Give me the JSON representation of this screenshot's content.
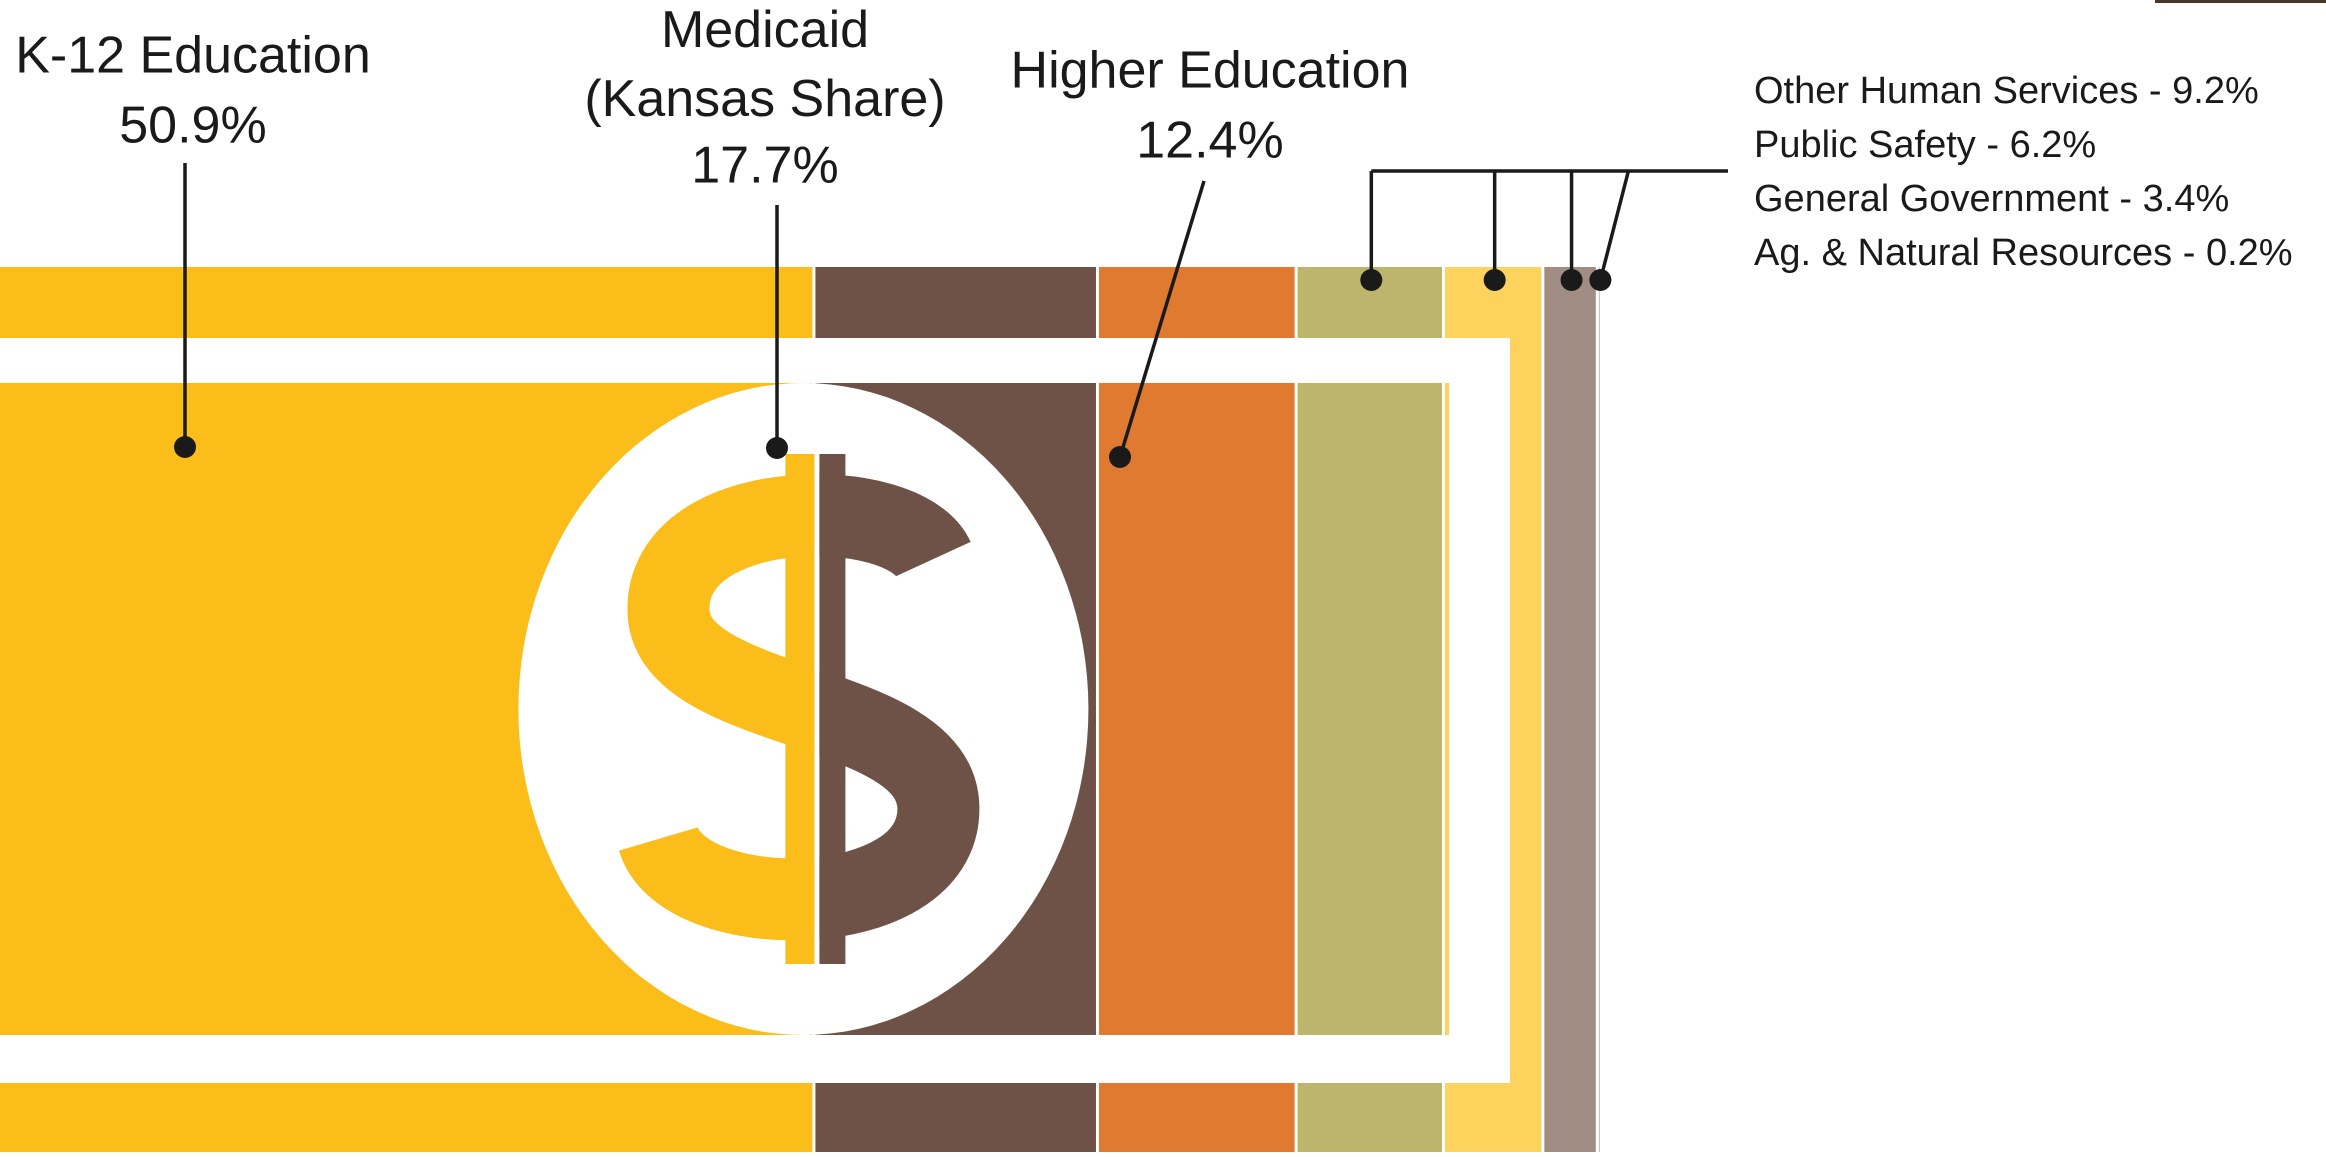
{
  "chart_data": {
    "type": "bar",
    "orientation": "horizontal",
    "stacked": true,
    "categories": [
      "K-12 Education",
      "Medicaid (Kansas Share)",
      "Higher Education",
      "Other Human Services",
      "Public Safety",
      "General Government",
      "Ag. & Natural Resources"
    ],
    "values": [
      50.9,
      17.7,
      12.4,
      9.2,
      6.2,
      3.4,
      0.2
    ],
    "value_labels": [
      "50.9%",
      "17.7%",
      "12.4%",
      "9.2%",
      "6.2%",
      "3.4%",
      "0.2%"
    ],
    "colors": [
      "#fbbd19",
      "#6f5247",
      "#e07a30",
      "#bdb56b",
      "#fdd35e",
      "#a28d84",
      "#b8bcc8"
    ],
    "legend_separator": " - ",
    "xlim": [
      0,
      100
    ]
  }
}
